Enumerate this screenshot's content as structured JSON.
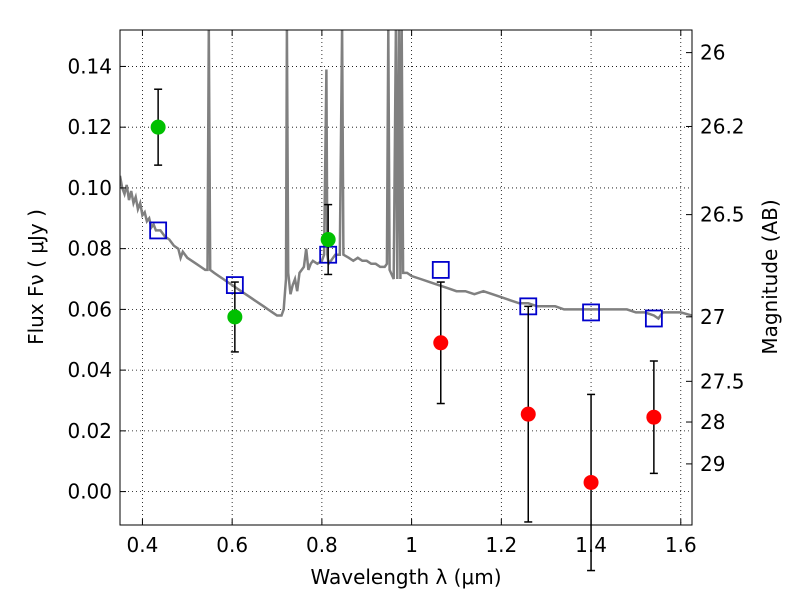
{
  "chart_data": {
    "type": "scatter",
    "xlabel": "Wavelength  λ (μm)",
    "ylabel": "Flux  Fν  ( μJy )",
    "y2label": "Magnitude (AB)",
    "xlim": [
      0.35,
      1.625
    ],
    "ylim": [
      -0.011,
      0.152
    ],
    "grid": true,
    "x_ticks": [
      {
        "value": 0.4,
        "label": "0.4"
      },
      {
        "value": 0.6,
        "label": "0.6"
      },
      {
        "value": 0.8,
        "label": "0.8"
      },
      {
        "value": 1.0,
        "label": "1"
      },
      {
        "value": 1.2,
        "label": "1.2"
      },
      {
        "value": 1.4,
        "label": "1.4"
      },
      {
        "value": 1.6,
        "label": "1.6"
      }
    ],
    "y_ticks": [
      {
        "value": 0.0,
        "label": "0.00"
      },
      {
        "value": 0.02,
        "label": "0.02"
      },
      {
        "value": 0.04,
        "label": "0.04"
      },
      {
        "value": 0.06,
        "label": "0.06"
      },
      {
        "value": 0.08,
        "label": "0.08"
      },
      {
        "value": 0.1,
        "label": "0.10"
      },
      {
        "value": 0.12,
        "label": "0.12"
      },
      {
        "value": 0.14,
        "label": "0.14"
      }
    ],
    "y2_ticks": [
      {
        "value": 26,
        "label": "26"
      },
      {
        "value": 26.2,
        "label": "26.2"
      },
      {
        "value": 26.5,
        "label": "26.5"
      },
      {
        "value": 27,
        "label": "27"
      },
      {
        "value": 27.5,
        "label": "27.5"
      },
      {
        "value": 28,
        "label": "28"
      },
      {
        "value": 29,
        "label": "29"
      }
    ],
    "sed_model": {
      "color": "#808080",
      "points": [
        [
          0.35,
          0.104
        ],
        [
          0.355,
          0.1
        ],
        [
          0.36,
          0.098
        ],
        [
          0.365,
          0.101
        ],
        [
          0.37,
          0.096
        ],
        [
          0.375,
          0.099
        ],
        [
          0.38,
          0.095
        ],
        [
          0.385,
          0.097
        ],
        [
          0.39,
          0.093
        ],
        [
          0.395,
          0.095
        ],
        [
          0.4,
          0.091
        ],
        [
          0.405,
          0.092
        ],
        [
          0.41,
          0.089
        ],
        [
          0.415,
          0.09
        ],
        [
          0.42,
          0.087
        ],
        [
          0.425,
          0.088
        ],
        [
          0.43,
          0.086
        ],
        [
          0.44,
          0.086
        ],
        [
          0.45,
          0.084
        ],
        [
          0.46,
          0.083
        ],
        [
          0.47,
          0.081
        ],
        [
          0.48,
          0.08
        ],
        [
          0.485,
          0.077
        ],
        [
          0.49,
          0.079
        ],
        [
          0.5,
          0.077
        ],
        [
          0.51,
          0.076
        ],
        [
          0.52,
          0.075
        ],
        [
          0.53,
          0.074
        ],
        [
          0.54,
          0.073
        ],
        [
          0.545,
          0.073
        ],
        [
          0.548,
          0.153
        ],
        [
          0.551,
          0.073
        ],
        [
          0.56,
          0.072
        ],
        [
          0.57,
          0.071
        ],
        [
          0.58,
          0.07
        ],
        [
          0.59,
          0.069
        ],
        [
          0.6,
          0.068
        ],
        [
          0.61,
          0.067
        ],
        [
          0.62,
          0.066
        ],
        [
          0.63,
          0.065
        ],
        [
          0.64,
          0.064
        ],
        [
          0.65,
          0.063
        ],
        [
          0.66,
          0.062
        ],
        [
          0.67,
          0.061
        ],
        [
          0.68,
          0.06
        ],
        [
          0.69,
          0.059
        ],
        [
          0.7,
          0.058
        ],
        [
          0.71,
          0.058
        ],
        [
          0.715,
          0.06
        ],
        [
          0.72,
          0.07
        ],
        [
          0.722,
          0.153
        ],
        [
          0.725,
          0.072
        ],
        [
          0.73,
          0.065
        ],
        [
          0.735,
          0.068
        ],
        [
          0.74,
          0.07
        ],
        [
          0.745,
          0.066
        ],
        [
          0.75,
          0.072
        ],
        [
          0.755,
          0.073
        ],
        [
          0.76,
          0.074
        ],
        [
          0.765,
          0.08
        ],
        [
          0.77,
          0.073
        ],
        [
          0.775,
          0.075
        ],
        [
          0.78,
          0.076
        ],
        [
          0.79,
          0.075
        ],
        [
          0.8,
          0.076
        ],
        [
          0.805,
          0.078
        ],
        [
          0.81,
          0.139
        ],
        [
          0.812,
          0.078
        ],
        [
          0.815,
          0.075
        ],
        [
          0.82,
          0.076
        ],
        [
          0.83,
          0.078
        ],
        [
          0.84,
          0.078
        ],
        [
          0.845,
          0.153
        ],
        [
          0.848,
          0.078
        ],
        [
          0.86,
          0.077
        ],
        [
          0.87,
          0.076
        ],
        [
          0.88,
          0.077
        ],
        [
          0.89,
          0.076
        ],
        [
          0.9,
          0.076
        ],
        [
          0.91,
          0.075
        ],
        [
          0.92,
          0.075
        ],
        [
          0.93,
          0.074
        ],
        [
          0.94,
          0.074
        ],
        [
          0.945,
          0.075
        ],
        [
          0.948,
          0.153
        ],
        [
          0.951,
          0.073
        ],
        [
          0.96,
          0.07
        ],
        [
          0.965,
          0.153
        ],
        [
          0.968,
          0.07
        ],
        [
          0.972,
          0.153
        ],
        [
          0.975,
          0.07
        ],
        [
          0.978,
          0.153
        ],
        [
          0.981,
          0.072
        ],
        [
          0.99,
          0.072
        ],
        [
          1.0,
          0.071
        ],
        [
          1.02,
          0.07
        ],
        [
          1.04,
          0.069
        ],
        [
          1.06,
          0.068
        ],
        [
          1.08,
          0.067
        ],
        [
          1.1,
          0.066
        ],
        [
          1.12,
          0.066
        ],
        [
          1.14,
          0.065
        ],
        [
          1.16,
          0.066
        ],
        [
          1.18,
          0.065
        ],
        [
          1.2,
          0.064
        ],
        [
          1.22,
          0.063
        ],
        [
          1.24,
          0.062
        ],
        [
          1.26,
          0.062
        ],
        [
          1.28,
          0.061
        ],
        [
          1.3,
          0.061
        ],
        [
          1.32,
          0.061
        ],
        [
          1.34,
          0.06
        ],
        [
          1.36,
          0.06
        ],
        [
          1.38,
          0.06
        ],
        [
          1.4,
          0.06
        ],
        [
          1.42,
          0.06
        ],
        [
          1.44,
          0.06
        ],
        [
          1.46,
          0.06
        ],
        [
          1.48,
          0.06
        ],
        [
          1.5,
          0.059
        ],
        [
          1.52,
          0.059
        ],
        [
          1.54,
          0.058
        ],
        [
          1.55,
          0.057
        ],
        [
          1.56,
          0.059
        ],
        [
          1.58,
          0.059
        ],
        [
          1.6,
          0.059
        ],
        [
          1.625,
          0.058
        ]
      ]
    },
    "model_fluxes": {
      "marker": "open-square",
      "color": "#0000cc",
      "points": [
        {
          "x": 0.435,
          "y": 0.086
        },
        {
          "x": 0.606,
          "y": 0.068
        },
        {
          "x": 0.814,
          "y": 0.078
        },
        {
          "x": 1.065,
          "y": 0.073
        },
        {
          "x": 1.26,
          "y": 0.061
        },
        {
          "x": 1.4,
          "y": 0.059
        },
        {
          "x": 1.54,
          "y": 0.057
        }
      ]
    },
    "detections": {
      "marker": "filled-circle",
      "color": "#00c000",
      "points": [
        {
          "x": 0.435,
          "y": 0.12,
          "yerr": 0.0125
        },
        {
          "x": 0.606,
          "y": 0.0575,
          "yerr": 0.0115
        },
        {
          "x": 0.814,
          "y": 0.083,
          "yerr": 0.0115
        }
      ]
    },
    "non_detections": {
      "marker": "filled-circle",
      "color": "#ff0000",
      "points": [
        {
          "x": 1.065,
          "y": 0.049,
          "yerr": 0.02
        },
        {
          "x": 1.26,
          "y": 0.0255,
          "yerr": 0.0355
        },
        {
          "x": 1.4,
          "y": 0.003,
          "yerr": 0.029
        },
        {
          "x": 1.54,
          "y": 0.0245,
          "yerr": 0.0185
        }
      ]
    }
  }
}
